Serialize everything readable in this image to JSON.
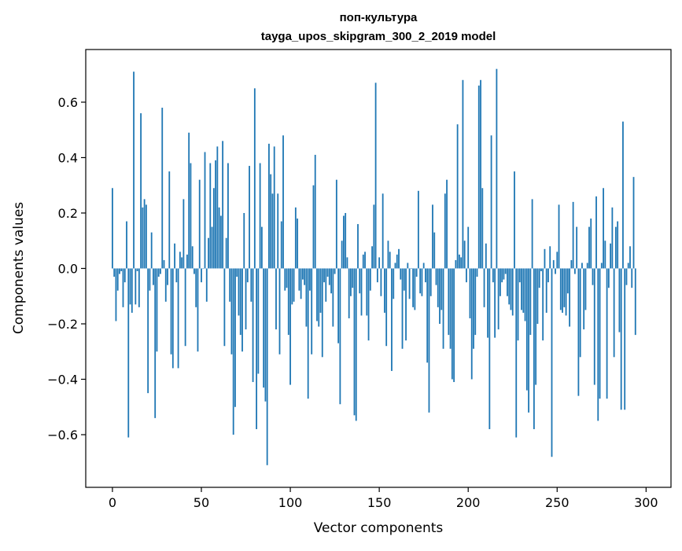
{
  "chart_data": {
    "type": "bar",
    "title": "поп-культура",
    "subtitle": "tayga_upos_skipgram_300_2_2019 model",
    "xlabel": "Vector components",
    "ylabel": "Components values",
    "xlim": [
      -15,
      314
    ],
    "ylim": [
      -0.79,
      0.79
    ],
    "xticks": [
      0,
      50,
      100,
      150,
      200,
      250,
      300
    ],
    "yticks": [
      -0.6,
      -0.4,
      -0.2,
      0.0,
      0.2,
      0.4,
      0.6
    ],
    "ytick_labels": [
      "−0.6",
      "−0.4",
      "−0.2",
      "0.0",
      "0.2",
      "0.4",
      "0.6"
    ],
    "bar_color": "#1f77b4",
    "grid": false,
    "values": [
      0.29,
      -0.03,
      -0.19,
      -0.08,
      -0.02,
      -0.01,
      -0.14,
      -0.05,
      0.17,
      -0.61,
      -0.13,
      -0.16,
      0.71,
      -0.13,
      -0.01,
      -0.14,
      0.56,
      0.22,
      0.25,
      0.23,
      -0.45,
      -0.08,
      0.13,
      -0.06,
      -0.54,
      -0.3,
      -0.03,
      -0.02,
      0.58,
      0.03,
      -0.12,
      -0.06,
      0.35,
      -0.31,
      -0.36,
      0.09,
      -0.05,
      -0.36,
      0.06,
      0.04,
      0.25,
      -0.28,
      0.05,
      0.49,
      0.38,
      0.08,
      -0.02,
      -0.14,
      -0.3,
      0.32,
      -0.05,
      0.0,
      0.42,
      -0.12,
      0.11,
      0.38,
      0.15,
      0.29,
      0.39,
      0.44,
      0.22,
      0.19,
      0.46,
      -0.28,
      0.11,
      0.38,
      -0.12,
      -0.31,
      -0.6,
      -0.5,
      -0.03,
      -0.17,
      -0.24,
      -0.3,
      0.2,
      -0.22,
      -0.05,
      0.37,
      -0.12,
      -0.41,
      0.65,
      -0.58,
      -0.38,
      0.38,
      0.15,
      -0.43,
      -0.48,
      -0.71,
      0.45,
      0.34,
      0.27,
      0.44,
      -0.22,
      0.27,
      -0.31,
      0.17,
      0.48,
      -0.08,
      -0.07,
      -0.24,
      -0.42,
      -0.13,
      -0.12,
      0.22,
      0.18,
      -0.08,
      -0.11,
      -0.04,
      -0.06,
      -0.21,
      -0.47,
      -0.08,
      -0.31,
      0.3,
      0.41,
      -0.19,
      -0.21,
      -0.16,
      -0.32,
      -0.05,
      -0.12,
      -0.03,
      -0.06,
      -0.09,
      -0.21,
      -0.02,
      0.32,
      -0.27,
      -0.49,
      0.1,
      0.19,
      0.2,
      0.04,
      -0.18,
      -0.1,
      -0.07,
      -0.53,
      -0.55,
      0.16,
      -0.09,
      -0.17,
      0.05,
      0.06,
      -0.17,
      -0.26,
      -0.08,
      0.08,
      0.23,
      0.67,
      -0.05,
      0.04,
      -0.1,
      0.27,
      -0.16,
      -0.28,
      0.1,
      0.06,
      -0.37,
      -0.11,
      0.02,
      0.05,
      0.07,
      -0.04,
      -0.29,
      -0.08,
      -0.26,
      0.02,
      -0.11,
      0.0,
      -0.14,
      -0.15,
      -0.03,
      0.28,
      -0.09,
      -0.1,
      0.02,
      -0.05,
      -0.34,
      -0.52,
      -0.1,
      0.23,
      0.13,
      -0.06,
      -0.14,
      -0.2,
      -0.15,
      -0.29,
      0.27,
      0.32,
      -0.24,
      -0.29,
      -0.4,
      -0.41,
      0.03,
      0.52,
      0.05,
      0.04,
      0.68,
      0.1,
      -0.05,
      0.15,
      -0.18,
      -0.4,
      -0.29,
      -0.24,
      -0.03,
      0.66,
      0.68,
      0.29,
      -0.14,
      0.09,
      -0.25,
      -0.58,
      0.48,
      -0.05,
      -0.25,
      0.72,
      -0.22,
      -0.1,
      -0.05,
      -0.04,
      -0.02,
      -0.1,
      -0.13,
      -0.15,
      -0.17,
      0.35,
      -0.61,
      -0.26,
      -0.05,
      -0.15,
      -0.16,
      -0.19,
      -0.44,
      -0.52,
      -0.24,
      0.25,
      -0.58,
      -0.42,
      -0.2,
      -0.07,
      -0.01,
      -0.26,
      0.07,
      -0.16,
      -0.05,
      0.08,
      -0.68,
      0.03,
      -0.02,
      0.06,
      0.23,
      -0.15,
      -0.16,
      -0.14,
      -0.17,
      -0.09,
      -0.21,
      0.03,
      0.24,
      -0.02,
      0.15,
      -0.46,
      -0.32,
      0.02,
      -0.22,
      -0.15,
      0.02,
      0.15,
      0.18,
      -0.06,
      -0.42,
      0.26,
      -0.55,
      -0.47,
      0.02,
      0.29,
      0.1,
      -0.47,
      -0.07,
      0.09,
      0.22,
      -0.32,
      0.15,
      0.17,
      -0.23,
      -0.51,
      0.53,
      -0.51,
      -0.06,
      0.02,
      0.08,
      -0.07,
      0.33,
      -0.24
    ]
  }
}
